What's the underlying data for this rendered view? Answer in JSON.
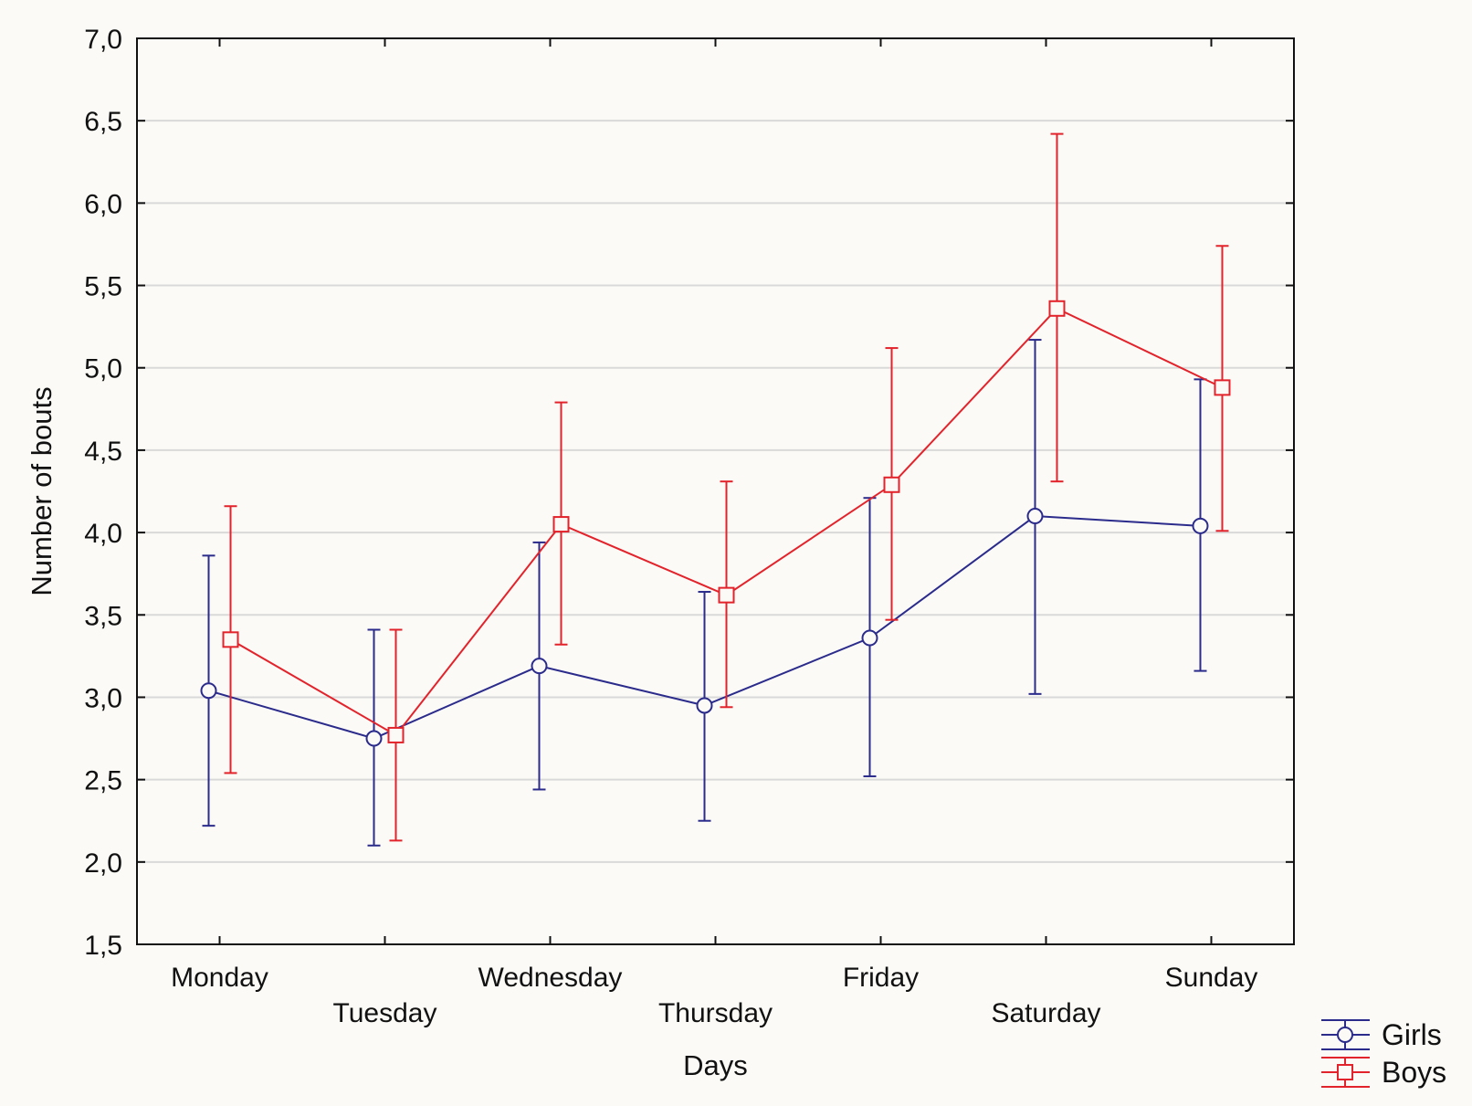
{
  "chart_data": {
    "type": "line",
    "title": "",
    "xlabel": "Days",
    "ylabel": "Number of bouts",
    "categories": [
      "Monday",
      "Tuesday",
      "Wednesday",
      "Thursday",
      "Friday",
      "Saturday",
      "Sunday"
    ],
    "ylim": [
      1.5,
      7.0
    ],
    "y_ticks": [
      "7,0",
      "6,5",
      "6,0",
      "5,5",
      "5,0",
      "4,5",
      "4,0",
      "3,5",
      "3,0",
      "2,5",
      "2,0",
      "1,5"
    ],
    "grid": true,
    "legend_position": "bottom-right",
    "series": [
      {
        "name": "Girls",
        "color": "#2b2b8c",
        "marker": "circle",
        "values": [
          3.04,
          2.75,
          3.19,
          2.95,
          3.36,
          4.1,
          4.04
        ],
        "lower": [
          2.22,
          2.1,
          2.44,
          2.25,
          2.52,
          3.02,
          3.16
        ],
        "upper": [
          3.86,
          3.41,
          3.94,
          3.64,
          4.21,
          5.17,
          4.93
        ]
      },
      {
        "name": "Boys",
        "color": "#e3232b",
        "marker": "square",
        "values": [
          3.35,
          2.77,
          4.05,
          3.62,
          4.29,
          5.36,
          4.88
        ],
        "lower": [
          2.54,
          2.13,
          3.32,
          2.94,
          3.47,
          4.31,
          4.01
        ],
        "upper": [
          4.16,
          3.41,
          4.79,
          4.31,
          5.12,
          6.42,
          5.74
        ]
      }
    ]
  }
}
